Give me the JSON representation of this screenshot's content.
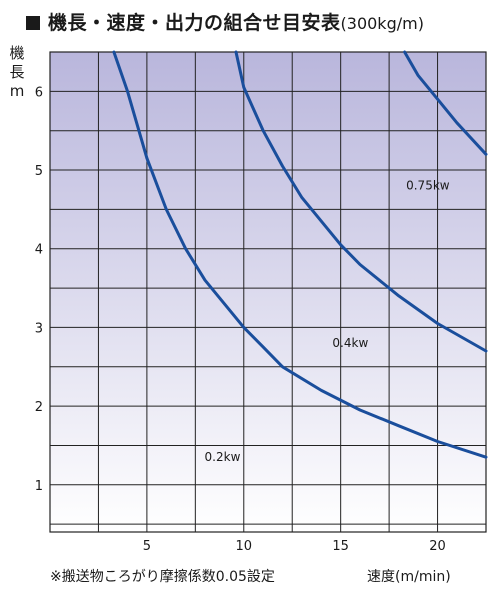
{
  "title": {
    "main": "機長・速度・出力の組合せ目安表",
    "unit": "(300kg/m)"
  },
  "footnote": "※搬送物ころがり摩擦係数0.05設定",
  "chart_data": {
    "type": "line",
    "ylabel_chars": [
      "機",
      "長",
      "m"
    ],
    "xlabel": "速度(m/min)",
    "xlim": [
      0,
      22.5
    ],
    "ylim": [
      0.4,
      6.5
    ],
    "x_ticks": [
      5,
      10,
      15,
      20
    ],
    "y_ticks": [
      1,
      2,
      3,
      4,
      5,
      6
    ],
    "grid": true,
    "series": [
      {
        "name": "0.2kw",
        "x": [
          3.3,
          4,
          5,
          6,
          7,
          8,
          9,
          10,
          11,
          12,
          14,
          16,
          18,
          20,
          22.5
        ],
        "y": [
          6.5,
          6.0,
          5.15,
          4.5,
          4.0,
          3.6,
          3.3,
          3.0,
          2.75,
          2.5,
          2.2,
          1.95,
          1.75,
          1.55,
          1.35
        ]
      },
      {
        "name": "0.4kw",
        "x": [
          9.6,
          10,
          11,
          12,
          13,
          14,
          15,
          16,
          18,
          20,
          22.5
        ],
        "y": [
          6.5,
          6.05,
          5.5,
          5.05,
          4.65,
          4.35,
          4.05,
          3.8,
          3.4,
          3.05,
          2.7
        ]
      },
      {
        "name": "0.75kw",
        "x": [
          18.3,
          19,
          20,
          21,
          22.5
        ],
        "y": [
          6.5,
          6.2,
          5.9,
          5.6,
          5.2
        ]
      }
    ],
    "color": "#1a4e9c"
  }
}
